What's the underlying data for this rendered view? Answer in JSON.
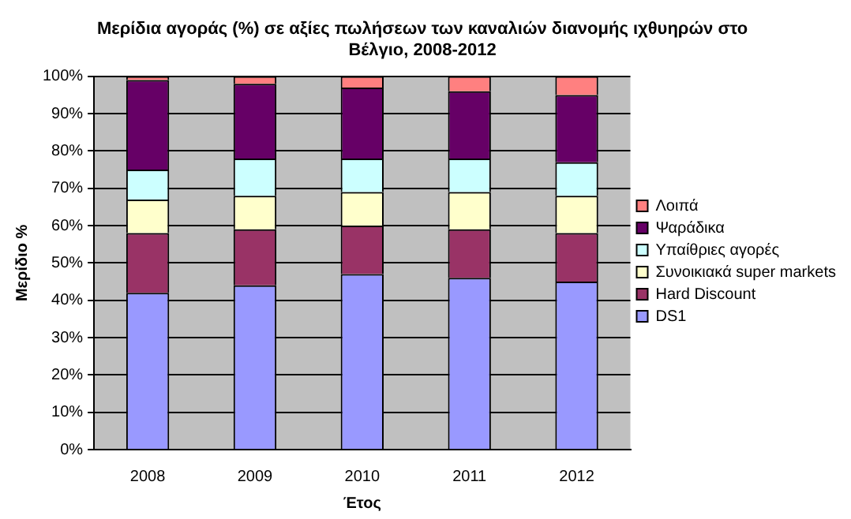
{
  "chart_data": {
    "type": "bar",
    "stacked": true,
    "title": [
      "Μερίδια αγοράς (%) σε αξίες πωλήσεων των καναλιών διανομής ιχθυηρών στο",
      "Βέλγιο, 2008-2012"
    ],
    "xlabel": "Έτος",
    "ylabel": "Μερίδιο %",
    "categories": [
      "2008",
      "2009",
      "2010",
      "2011",
      "2012"
    ],
    "series": [
      {
        "name": "DS1",
        "color": "#9999ff",
        "values": [
          42,
          44,
          47,
          46,
          45
        ]
      },
      {
        "name": "Hard Discount",
        "color": "#993366",
        "values": [
          16,
          15,
          13,
          13,
          13
        ]
      },
      {
        "name": "Συνοικιακά super markets",
        "color": "#ffffcc",
        "values": [
          9,
          9,
          9,
          10,
          10
        ]
      },
      {
        "name": "Υπαίθριες αγορές",
        "color": "#ccffff",
        "values": [
          8,
          10,
          9,
          9,
          9
        ]
      },
      {
        "name": "Ψαράδικα",
        "color": "#660066",
        "values": [
          24,
          20,
          19,
          18,
          18
        ]
      },
      {
        "name": "Λοιπά",
        "color": "#ff8080",
        "values": [
          1,
          2,
          3,
          4,
          5
        ]
      }
    ],
    "ylim": [
      0,
      100
    ],
    "yticks": [
      {
        "value": 0,
        "label": "0%"
      },
      {
        "value": 10,
        "label": "10%"
      },
      {
        "value": 20,
        "label": "20%"
      },
      {
        "value": 30,
        "label": "30%"
      },
      {
        "value": 40,
        "label": "40%"
      },
      {
        "value": 50,
        "label": "50%"
      },
      {
        "value": 60,
        "label": "60%"
      },
      {
        "value": 70,
        "label": "70%"
      },
      {
        "value": 80,
        "label": "80%"
      },
      {
        "value": 90,
        "label": "90%"
      },
      {
        "value": 100,
        "label": "100%"
      }
    ],
    "grid": "y",
    "legend": "right"
  }
}
